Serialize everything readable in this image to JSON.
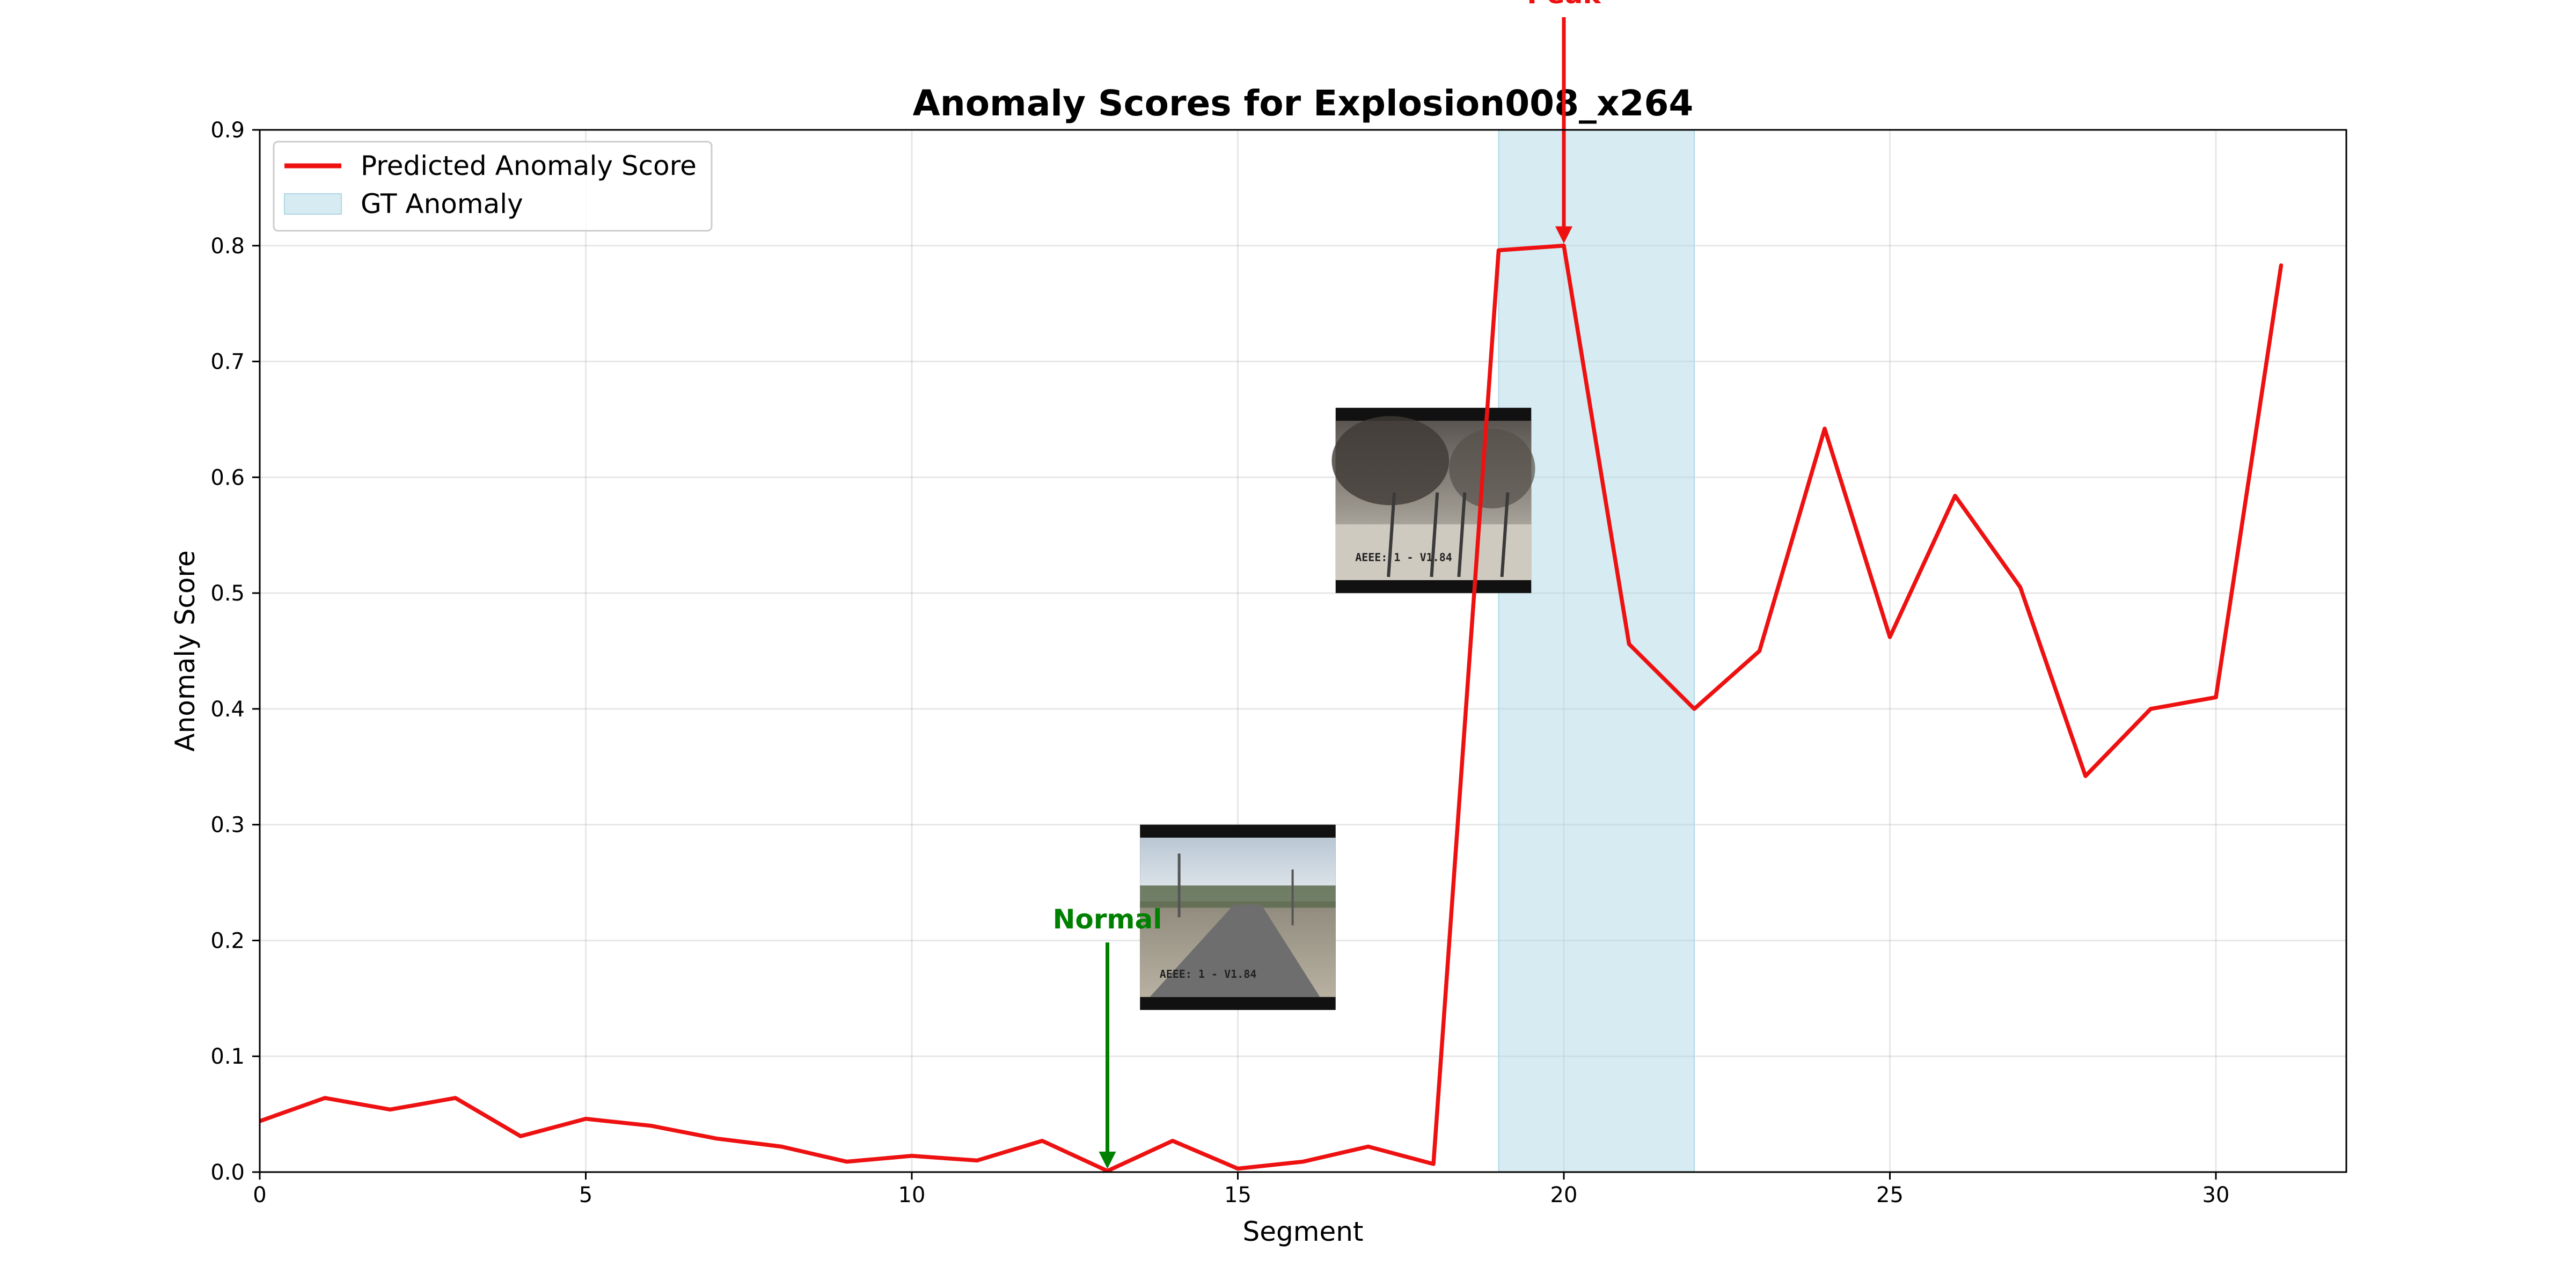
{
  "chart_data": {
    "type": "line",
    "title": "Anomaly Scores for Explosion008_x264",
    "xlabel": "Segment",
    "ylabel": "Anomaly Score",
    "xlim": [
      0,
      32
    ],
    "ylim": [
      0,
      0.9
    ],
    "xticks": [
      0,
      5,
      10,
      15,
      20,
      25,
      30
    ],
    "yticks": [
      0.0,
      0.1,
      0.2,
      0.3,
      0.4,
      0.5,
      0.6,
      0.7,
      0.8,
      0.9
    ],
    "grid": true,
    "legend_placement": "top-left",
    "series": [
      {
        "name": "Predicted Anomaly Score",
        "color": "#ee1111",
        "x": [
          0,
          1,
          2,
          3,
          4,
          5,
          6,
          7,
          8,
          9,
          10,
          11,
          12,
          13,
          14,
          15,
          16,
          17,
          18,
          19,
          20,
          21,
          22,
          23,
          24,
          25,
          26,
          27,
          28,
          29,
          30,
          31
        ],
        "values": [
          0.044,
          0.064,
          0.054,
          0.064,
          0.031,
          0.046,
          0.04,
          0.029,
          0.022,
          0.009,
          0.014,
          0.01,
          0.027,
          0.001,
          0.027,
          0.003,
          0.009,
          0.022,
          0.007,
          0.796,
          0.8,
          0.456,
          0.4,
          0.45,
          0.642,
          0.462,
          0.584,
          0.505,
          0.342,
          0.4,
          0.41,
          0.783
        ]
      }
    ],
    "gt_anomaly": {
      "name": "GT Anomaly",
      "start": 19,
      "end": 22,
      "color": "#add8e6"
    },
    "annotations": [
      {
        "text": "Peak",
        "x": 20,
        "y": 0.8,
        "color": "#ee1111"
      },
      {
        "text": "Normal",
        "x": 13,
        "y": 0.001,
        "color": "#008000"
      }
    ],
    "thumbnails": [
      {
        "name": "frame-thumbnail-normal",
        "x_start": 13.5,
        "x_end": 16.5,
        "y_bottom": 0.14,
        "y_top": 0.3,
        "kind": "normal",
        "overlay_text": "AEEE: 1 - V1.84"
      },
      {
        "name": "frame-thumbnail-peak",
        "x_start": 16.5,
        "x_end": 19.5,
        "y_bottom": 0.5,
        "y_top": 0.66,
        "kind": "explosion",
        "overlay_text": "AEEE: 1 - V1.84"
      }
    ]
  }
}
